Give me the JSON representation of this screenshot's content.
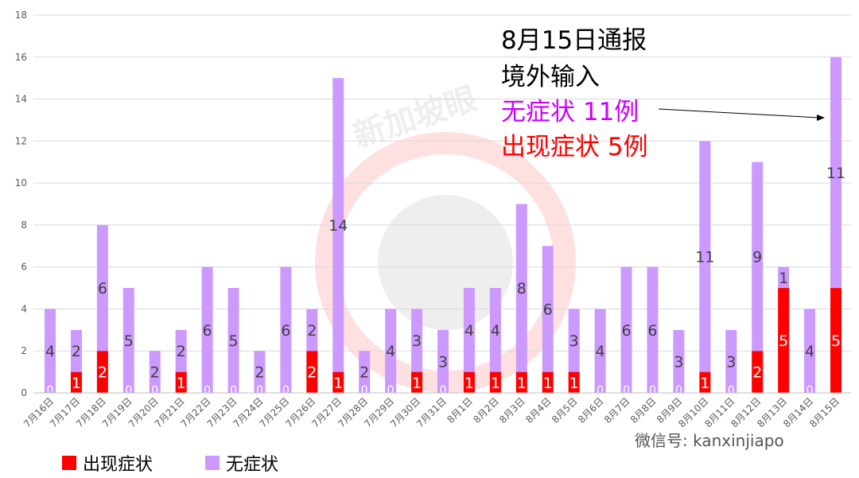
{
  "chart_data": {
    "type": "bar",
    "stacked": true,
    "categories": [
      "7月16日",
      "7月17日",
      "7月18日",
      "7月19日",
      "7月20日",
      "7月21日",
      "7月22日",
      "7月23日",
      "7月24日",
      "7月25日",
      "7月26日",
      "7月27日",
      "7月28日",
      "7月29日",
      "7月30日",
      "7月31日",
      "8月1日",
      "8月2日",
      "8月3日",
      "8月4日",
      "8月5日",
      "8月6日",
      "8月7日",
      "8月8日",
      "8月9日",
      "8月10日",
      "8月11日",
      "8月12日",
      "8月13日",
      "8月14日",
      "8月15日"
    ],
    "series": [
      {
        "name": "出现症状",
        "color": "#ff0000",
        "values": [
          0,
          1,
          2,
          0,
          0,
          1,
          0,
          0,
          0,
          0,
          2,
          1,
          0,
          0,
          1,
          0,
          1,
          1,
          1,
          1,
          1,
          0,
          0,
          0,
          0,
          1,
          0,
          2,
          5,
          0,
          5
        ]
      },
      {
        "name": "无症状",
        "color": "#cc99ff",
        "values": [
          4,
          2,
          6,
          5,
          2,
          2,
          6,
          5,
          2,
          6,
          2,
          14,
          2,
          4,
          3,
          3,
          4,
          4,
          8,
          6,
          3,
          4,
          6,
          6,
          3,
          11,
          3,
          9,
          1,
          4,
          11
        ]
      }
    ],
    "ylim": [
      0,
      18
    ],
    "yticks": [
      0,
      2,
      4,
      6,
      8,
      10,
      12,
      14,
      16,
      18
    ],
    "grid": true,
    "legend": "bottom-left",
    "annotation": {
      "line1": "8月15日通报",
      "line2": "境外输入",
      "line3": "无症状 11例",
      "line4": "出现症状 5例",
      "line3_color": "#cc00ff",
      "line4_color": "#ff0000"
    }
  },
  "watermark": {
    "logo_text": "新加坡眼",
    "account": "微信号: kanxinjiapo"
  }
}
